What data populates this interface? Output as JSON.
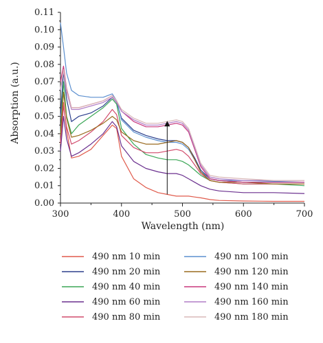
{
  "chart_data": {
    "type": "line",
    "title": "",
    "xlabel": "Wavelength (nm)",
    "ylabel": "Absorption (a.u.)",
    "xlim": [
      300,
      700
    ],
    "ylim": [
      0.0,
      0.11
    ],
    "x_ticks": [
      "300",
      "400",
      "500",
      "600",
      "700"
    ],
    "y_ticks": [
      "0.00",
      "0.01",
      "0.02",
      "0.03",
      "0.04",
      "0.05",
      "0.06",
      "0.07",
      "0.08",
      "0.09",
      "0.10",
      "0.11"
    ],
    "grid": false,
    "legend_position": "below",
    "annotation": {
      "type": "arrow",
      "direction": "up",
      "x": 475,
      "y_from": 0.005,
      "y_to": 0.047
    },
    "x": [
      300,
      305,
      310,
      318,
      330,
      350,
      370,
      385,
      392,
      400,
      420,
      440,
      460,
      475,
      490,
      500,
      510,
      520,
      530,
      545,
      560,
      600,
      650,
      700
    ],
    "series": [
      {
        "name": "490 nm 10 min",
        "color": "#e05a4b",
        "values": [
          0.034,
          0.058,
          0.042,
          0.026,
          0.027,
          0.031,
          0.039,
          0.045,
          0.043,
          0.027,
          0.014,
          0.009,
          0.006,
          0.005,
          0.004,
          0.004,
          0.004,
          0.0035,
          0.003,
          0.002,
          0.0015,
          0.0012,
          0.001,
          0.001
        ]
      },
      {
        "name": "490 nm 20 min",
        "color": "#2b3f8c",
        "values": [
          0.05,
          0.076,
          0.06,
          0.047,
          0.05,
          0.052,
          0.056,
          0.061,
          0.058,
          0.049,
          0.042,
          0.039,
          0.037,
          0.036,
          0.036,
          0.035,
          0.032,
          0.026,
          0.019,
          0.014,
          0.013,
          0.012,
          0.012,
          0.012
        ]
      },
      {
        "name": "490 nm 40 min",
        "color": "#3aa655",
        "values": [
          0.04,
          0.07,
          0.05,
          0.04,
          0.045,
          0.05,
          0.055,
          0.06,
          0.057,
          0.043,
          0.034,
          0.028,
          0.026,
          0.025,
          0.025,
          0.024,
          0.022,
          0.019,
          0.016,
          0.013,
          0.012,
          0.011,
          0.011,
          0.01
        ]
      },
      {
        "name": "490 nm 60 min",
        "color": "#6a2f8e",
        "values": [
          0.03,
          0.05,
          0.037,
          0.027,
          0.029,
          0.034,
          0.04,
          0.047,
          0.044,
          0.033,
          0.024,
          0.02,
          0.018,
          0.017,
          0.017,
          0.016,
          0.014,
          0.012,
          0.01,
          0.008,
          0.007,
          0.006,
          0.006,
          0.0055
        ]
      },
      {
        "name": "490 nm 80 min",
        "color": "#d14a6b",
        "values": [
          0.035,
          0.056,
          0.044,
          0.034,
          0.036,
          0.041,
          0.047,
          0.054,
          0.051,
          0.039,
          0.032,
          0.029,
          0.029,
          0.03,
          0.031,
          0.03,
          0.027,
          0.022,
          0.017,
          0.013,
          0.012,
          0.011,
          0.011,
          0.011
        ]
      },
      {
        "name": "490 nm 100 min",
        "color": "#5b8fcf",
        "values": [
          0.104,
          0.09,
          0.075,
          0.065,
          0.062,
          0.061,
          0.061,
          0.063,
          0.059,
          0.048,
          0.041,
          0.038,
          0.036,
          0.035,
          0.035,
          0.034,
          0.031,
          0.025,
          0.018,
          0.014,
          0.013,
          0.013,
          0.0125,
          0.012
        ]
      },
      {
        "name": "490 nm 120 min",
        "color": "#9a6a1e",
        "values": [
          0.039,
          0.064,
          0.049,
          0.038,
          0.039,
          0.042,
          0.046,
          0.05,
          0.048,
          0.041,
          0.036,
          0.034,
          0.034,
          0.035,
          0.036,
          0.035,
          0.032,
          0.025,
          0.018,
          0.013,
          0.012,
          0.012,
          0.011,
          0.011
        ]
      },
      {
        "name": "490 nm 140 min",
        "color": "#c8367c",
        "values": [
          0.07,
          0.079,
          0.066,
          0.055,
          0.055,
          0.057,
          0.059,
          0.062,
          0.059,
          0.053,
          0.047,
          0.044,
          0.044,
          0.045,
          0.046,
          0.045,
          0.041,
          0.031,
          0.021,
          0.014,
          0.013,
          0.012,
          0.012,
          0.012
        ]
      },
      {
        "name": "490 nm 160 min",
        "color": "#b07cc6",
        "values": [
          0.065,
          0.076,
          0.064,
          0.054,
          0.054,
          0.056,
          0.058,
          0.061,
          0.058,
          0.053,
          0.048,
          0.045,
          0.045,
          0.046,
          0.047,
          0.046,
          0.042,
          0.032,
          0.022,
          0.015,
          0.014,
          0.013,
          0.013,
          0.013
        ]
      },
      {
        "name": "490 nm 180 min",
        "color": "#d9b8b8",
        "values": [
          0.066,
          0.077,
          0.065,
          0.055,
          0.055,
          0.057,
          0.059,
          0.062,
          0.059,
          0.054,
          0.049,
          0.046,
          0.046,
          0.047,
          0.048,
          0.047,
          0.043,
          0.033,
          0.023,
          0.016,
          0.015,
          0.014,
          0.013,
          0.013
        ]
      }
    ]
  }
}
